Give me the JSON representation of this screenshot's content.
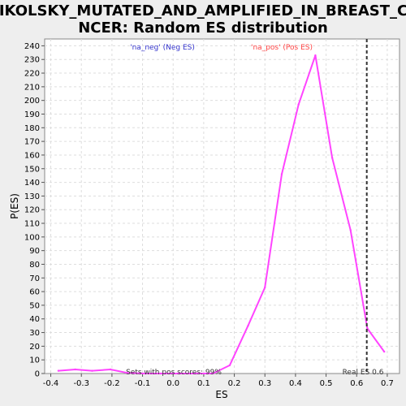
{
  "chart_data": {
    "type": "line",
    "title_line1": "NIKOLSKY_MUTATED_AND_AMPLIFIED_IN_BREAST_CA",
    "title_line2": "NCER: Random ES distribution",
    "xlabel": "ES",
    "ylabel": "P(ES)",
    "xlim": [
      -0.42,
      0.74
    ],
    "ylim": [
      0,
      245
    ],
    "x_ticks": [
      -0.4,
      -0.3,
      -0.2,
      -0.1,
      0.0,
      0.1,
      0.2,
      0.3,
      0.4,
      0.5,
      0.6,
      0.7
    ],
    "x_tick_labels": [
      "-0.4",
      "-0.3",
      "-0.2",
      "-0.1",
      "0.0",
      "0.1",
      "0.2",
      "0.3",
      "0.4",
      "0.5",
      "0.6",
      "0.7"
    ],
    "y_ticks": [
      0,
      10,
      20,
      30,
      40,
      50,
      60,
      70,
      80,
      90,
      100,
      110,
      120,
      130,
      140,
      150,
      160,
      170,
      180,
      190,
      200,
      210,
      220,
      230,
      240
    ],
    "grid": true,
    "series": [
      {
        "color": "#ff44ff",
        "x": [
          -0.375,
          -0.32,
          -0.265,
          -0.205,
          -0.15,
          -0.09,
          -0.04,
          0.02,
          0.075,
          0.13,
          0.185,
          0.245,
          0.3,
          0.355,
          0.41,
          0.465,
          0.52,
          0.58,
          0.635,
          0.69
        ],
        "y": [
          2,
          3,
          2,
          3,
          0.5,
          0,
          0,
          0,
          0,
          0,
          6,
          35,
          63,
          146,
          197,
          233,
          158,
          105,
          33,
          16
        ]
      }
    ],
    "annotations": {
      "neg_label": "'na_neg' (Neg ES)",
      "neg_color": "#3333cc",
      "pos_label": "'na_pos' (Pos ES)",
      "pos_color": "#ff4444",
      "sets_text": "Sets with pos scores: 99%",
      "real_es_text": "Real ES 0.6",
      "real_es_x": 0.633
    }
  }
}
